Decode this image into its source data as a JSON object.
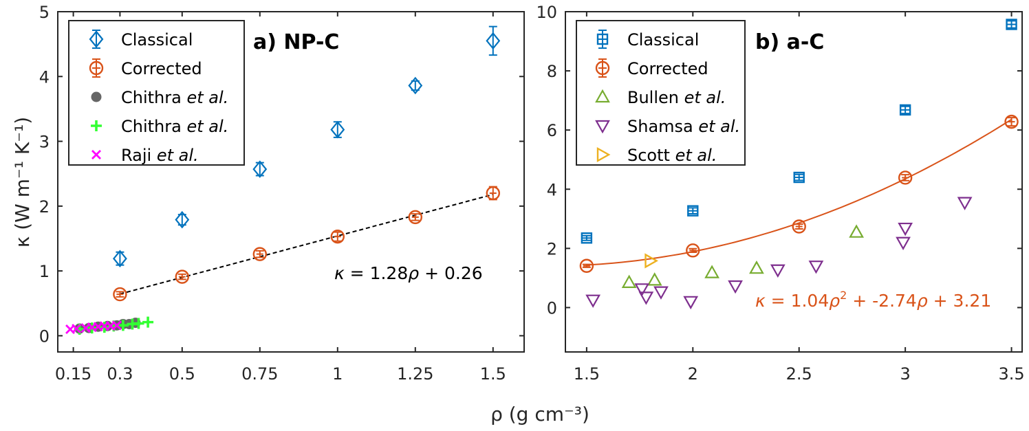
{
  "figure": {
    "x_label": "ρ (g cm⁻³)",
    "y_label": "κ (W m⁻¹ K⁻¹)"
  },
  "colors": {
    "classical": "#0072BD",
    "corrected": "#D95319",
    "chithra_circle": "#666666",
    "chithra_plus": "#33FF33",
    "raji": "#FF00FF",
    "bullen": "#77AC30",
    "shamsa": "#7E2F8E",
    "scott": "#EDB120",
    "fitline_a": "#000000",
    "fitline_b": "#D95319"
  },
  "chart_data": [
    {
      "panel": "a",
      "type": "scatter",
      "title": "a) NP-C",
      "xlabel": "ρ (g cm⁻³)",
      "ylabel": "κ (W m⁻¹ K⁻¹)",
      "xlim": [
        0.1,
        1.6
      ],
      "ylim": [
        -0.25,
        5
      ],
      "xticks": [
        0.15,
        0.3,
        0.5,
        0.75,
        1,
        1.25,
        1.5
      ],
      "xtick_labels": [
        "0.15",
        "0.3",
        "0.5",
        "0.75",
        "1",
        "1.25",
        "1.5"
      ],
      "yticks": [
        0,
        1,
        2,
        3,
        4,
        5
      ],
      "ytick_labels": [
        "0",
        "1",
        "2",
        "3",
        "4",
        "5"
      ],
      "legend_position": "top-left",
      "series": [
        {
          "name": "Classical",
          "legend_main": "Classical",
          "legend_suffix": "",
          "marker": "diamond",
          "errorbar": true,
          "color": "#0072BD",
          "x": [
            0.3,
            0.5,
            0.75,
            1,
            1.25,
            1.5
          ],
          "y": [
            1.19,
            1.79,
            2.57,
            3.18,
            3.86,
            4.55
          ],
          "err": [
            0.1,
            0.08,
            0.1,
            0.12,
            0.07,
            0.22
          ]
        },
        {
          "name": "Corrected",
          "legend_main": "Corrected",
          "legend_suffix": "",
          "marker": "circle",
          "errorbar": true,
          "color": "#D95319",
          "x": [
            0.3,
            0.5,
            0.75,
            1,
            1.25,
            1.5
          ],
          "y": [
            0.64,
            0.91,
            1.26,
            1.53,
            1.83,
            2.2
          ],
          "err": [
            0.04,
            0.04,
            0.05,
            0.07,
            0.05,
            0.1
          ]
        },
        {
          "name": "Chithra et al.",
          "legend_main": "Chithra ",
          "legend_suffix": "et al.",
          "marker": "filled-circle",
          "errorbar": false,
          "color": "#666666",
          "x": [
            0.17,
            0.2,
            0.23,
            0.26,
            0.29,
            0.31,
            0.33,
            0.35
          ],
          "y": [
            0.11,
            0.12,
            0.14,
            0.15,
            0.16,
            0.18,
            0.18,
            0.2
          ]
        },
        {
          "name": "Chithra et al.",
          "legend_main": "Chithra ",
          "legend_suffix": "et al.",
          "marker": "plus",
          "errorbar": false,
          "color": "#33FF33",
          "x": [
            0.17,
            0.21,
            0.25,
            0.28,
            0.31,
            0.34,
            0.36,
            0.39
          ],
          "y": [
            0.1,
            0.12,
            0.13,
            0.15,
            0.16,
            0.18,
            0.19,
            0.21
          ]
        },
        {
          "name": "Raji et al.",
          "legend_main": "Raji ",
          "legend_suffix": "et al.",
          "marker": "cross",
          "errorbar": false,
          "color": "#FF00FF",
          "x": [
            0.14,
            0.16,
            0.19,
            0.21,
            0.23,
            0.25,
            0.27,
            0.29
          ],
          "y": [
            0.1,
            0.11,
            0.12,
            0.13,
            0.14,
            0.15,
            0.15,
            0.16
          ]
        }
      ],
      "fit": {
        "type": "linear",
        "a": 1.28,
        "b": 0.26,
        "x_range": [
          0.3,
          1.5
        ],
        "style": "dashed",
        "color": "#000000",
        "equation_kappa": "κ",
        "equation_rest": " = 1.28",
        "equation_rho": "ρ",
        "equation_tail": " + 0.26"
      }
    },
    {
      "panel": "b",
      "type": "scatter",
      "title": "b) a-C",
      "xlabel": "ρ (g cm⁻³)",
      "ylabel": "",
      "xlim": [
        1.4,
        3.55
      ],
      "ylim": [
        -1.5,
        10
      ],
      "xticks": [
        1.5,
        2,
        2.5,
        3,
        3.5
      ],
      "xtick_labels": [
        "1.5",
        "2",
        "2.5",
        "3",
        "3.5"
      ],
      "yticks": [
        0,
        2,
        4,
        6,
        8,
        10
      ],
      "ytick_labels": [
        "0",
        "2",
        "4",
        "6",
        "8",
        "10"
      ],
      "legend_position": "top-left",
      "series": [
        {
          "name": "Classical",
          "legend_main": "Classical",
          "legend_suffix": "",
          "marker": "square",
          "errorbar": true,
          "color": "#0072BD",
          "x": [
            1.5,
            2,
            2.5,
            3,
            3.5
          ],
          "y": [
            2.35,
            3.27,
            4.4,
            6.68,
            9.57
          ],
          "err": [
            0.08,
            0.1,
            0.1,
            0.12,
            0.12
          ]
        },
        {
          "name": "Corrected",
          "legend_main": "Corrected",
          "legend_suffix": "",
          "marker": "circle",
          "errorbar": true,
          "color": "#D95319",
          "x": [
            1.5,
            2,
            2.5,
            3,
            3.5
          ],
          "y": [
            1.41,
            1.93,
            2.74,
            4.39,
            6.28
          ],
          "err": [
            0.05,
            0.06,
            0.08,
            0.1,
            0.14
          ]
        },
        {
          "name": "Bullen et al.",
          "legend_main": "Bullen ",
          "legend_suffix": "et al.",
          "marker": "triangle-up",
          "errorbar": false,
          "color": "#77AC30",
          "x": [
            1.7,
            1.82,
            2.09,
            2.3,
            2.77
          ],
          "y": [
            0.85,
            0.93,
            1.18,
            1.33,
            2.55
          ]
        },
        {
          "name": "Shamsa et al.",
          "legend_main": "Shamsa ",
          "legend_suffix": "et al.",
          "marker": "triangle-down",
          "errorbar": false,
          "color": "#7E2F8E",
          "x": [
            1.53,
            1.76,
            1.78,
            1.85,
            1.99,
            2.2,
            2.4,
            2.58,
            2.99,
            3,
            3.28
          ],
          "y": [
            0.25,
            0.63,
            0.35,
            0.53,
            0.2,
            0.73,
            1.27,
            1.4,
            2.2,
            2.68,
            3.55
          ]
        },
        {
          "name": "Scott et al.",
          "legend_main": "Scott ",
          "legend_suffix": "et al.",
          "marker": "triangle-right",
          "errorbar": false,
          "color": "#EDB120",
          "x": [
            1.8
          ],
          "y": [
            1.58
          ]
        }
      ],
      "fit": {
        "type": "quadratic",
        "a": 1.04,
        "b": -2.74,
        "c": 3.21,
        "x_range": [
          1.5,
          3.5
        ],
        "style": "solid",
        "color": "#D95319",
        "equation_kappa": "κ",
        "equation_rest": " = 1.04",
        "equation_rho": "ρ",
        "equation_sup": "2",
        "equation_mid": " + -2.74",
        "equation_tail": " + 3.21"
      }
    }
  ]
}
